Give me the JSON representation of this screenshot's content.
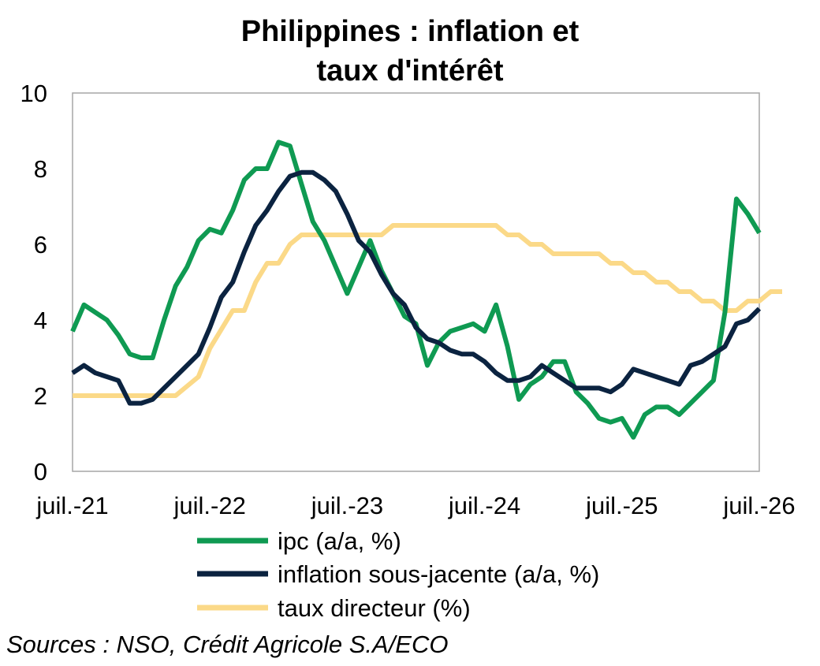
{
  "source": "Sources : NSO, Crédit Agricole S.A/ECO",
  "chart_data": {
    "type": "line",
    "title_lines": [
      "Philippines : inflation et",
      "taux d'intérêt"
    ],
    "x_tick_labels": [
      "juil.-21",
      "juil.-22",
      "juil.-23",
      "juil.-24",
      "juil.-25",
      "juil.-26"
    ],
    "x_range_months": [
      "2021-07",
      "2026-07"
    ],
    "ylim": [
      0,
      10
    ],
    "y_ticks": [
      0,
      2,
      4,
      6,
      8,
      10
    ],
    "grid": false,
    "legend_position": "bottom",
    "series": [
      {
        "name": "ipc (a/a, %)",
        "color": "#0f9a52",
        "start": "2021-07",
        "values": [
          3.7,
          4.4,
          4.2,
          4.0,
          3.6,
          3.1,
          3.0,
          3.0,
          4.0,
          4.9,
          5.4,
          6.1,
          6.4,
          6.3,
          6.9,
          7.7,
          8.0,
          8.0,
          8.7,
          8.6,
          7.6,
          6.6,
          6.1,
          5.4,
          4.7,
          5.4,
          6.1,
          5.3,
          4.7,
          4.1,
          3.9,
          2.8,
          3.4,
          3.7,
          3.8,
          3.9,
          3.7,
          4.4,
          3.3,
          1.9,
          2.3,
          2.5,
          2.9,
          2.9,
          2.1,
          1.8,
          1.4,
          1.3,
          1.4,
          0.9,
          1.5,
          1.7,
          1.7,
          1.5,
          1.8,
          2.1,
          2.4,
          4.2,
          7.2,
          6.8,
          6.3
        ]
      },
      {
        "name": "inflation sous-jacente (a/a, %)",
        "color": "#0b2340",
        "start": "2021-07",
        "values": [
          2.6,
          2.8,
          2.6,
          2.5,
          2.4,
          1.8,
          1.8,
          1.9,
          2.2,
          2.5,
          2.8,
          3.1,
          3.8,
          4.6,
          5.0,
          5.8,
          6.5,
          6.9,
          7.4,
          7.8,
          7.9,
          7.9,
          7.7,
          7.4,
          6.8,
          6.1,
          5.8,
          5.2,
          4.7,
          4.4,
          3.8,
          3.5,
          3.4,
          3.2,
          3.1,
          3.1,
          2.9,
          2.6,
          2.4,
          2.4,
          2.5,
          2.8,
          2.6,
          2.4,
          2.2,
          2.2,
          2.2,
          2.1,
          2.3,
          2.7,
          2.6,
          2.5,
          2.4,
          2.3,
          2.8,
          2.9,
          3.1,
          3.3,
          3.9,
          4.0,
          4.3
        ]
      },
      {
        "name": "taux directeur (%)",
        "color": "#fbd988",
        "start": "2021-07",
        "values": [
          2.0,
          2.0,
          2.0,
          2.0,
          2.0,
          2.0,
          2.0,
          2.0,
          2.0,
          2.0,
          2.25,
          2.5,
          3.25,
          3.75,
          4.25,
          4.25,
          5.0,
          5.5,
          5.5,
          6.0,
          6.25,
          6.25,
          6.25,
          6.25,
          6.25,
          6.25,
          6.25,
          6.25,
          6.5,
          6.5,
          6.5,
          6.5,
          6.5,
          6.5,
          6.5,
          6.5,
          6.5,
          6.5,
          6.25,
          6.25,
          6.0,
          6.0,
          5.75,
          5.75,
          5.75,
          5.75,
          5.75,
          5.5,
          5.5,
          5.25,
          5.25,
          5.0,
          5.0,
          4.75,
          4.75,
          4.5,
          4.5,
          4.25,
          4.25,
          4.5,
          4.5,
          4.75,
          4.75
        ]
      }
    ]
  }
}
